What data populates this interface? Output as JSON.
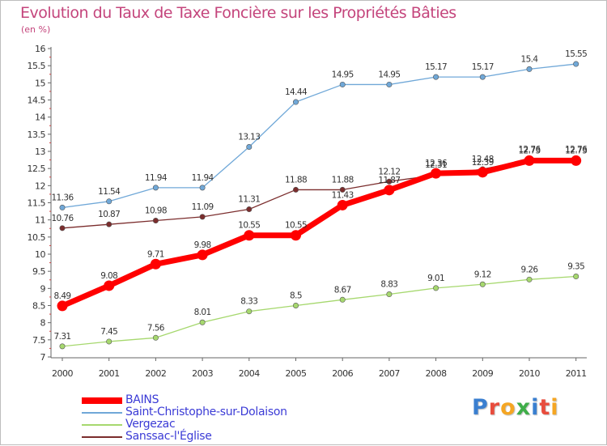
{
  "title": "Evolution du Taux de Taxe Foncière sur les Propriétés Bâties",
  "unit_label": "(en %)",
  "logo_text": "Proxiti",
  "logo_colors": [
    "#3a7fd0",
    "#e84c3d",
    "#f5a623",
    "#3fae49",
    "#3a7fd0",
    "#e84c3d",
    "#f5a623"
  ],
  "chart_data": {
    "type": "line",
    "title": "Evolution du Taux de Taxe Foncière sur les Propriétés Bâties",
    "ylabel": "(en %)",
    "xlabel": "",
    "ylim": [
      7,
      16
    ],
    "yticks": [
      "7",
      "7.5",
      "8",
      "8.5",
      "9",
      "9.5",
      "10",
      "10.5",
      "11",
      "11.5",
      "12",
      "12.5",
      "13",
      "13.5",
      "14",
      "14.5",
      "15",
      "15.5",
      "16"
    ],
    "categories": [
      "2000",
      "2001",
      "2002",
      "2003",
      "2004",
      "2005",
      "2006",
      "2007",
      "2008",
      "2009",
      "2010",
      "2011"
    ],
    "grid": false,
    "legend_position": "bottom-left",
    "series": [
      {
        "name": "BAINS",
        "color": "#ff0000",
        "values": [
          8.49,
          9.08,
          9.71,
          9.98,
          10.55,
          10.55,
          11.43,
          11.87,
          12.36,
          12.39,
          12.73,
          12.73
        ],
        "labels": [
          "8.49",
          "9.08",
          "9.71",
          "9.98",
          "10.55",
          "10.55",
          "11.43",
          "11.87",
          "12.36",
          "12.39",
          "12.73",
          "12.73"
        ]
      },
      {
        "name": "Saint-Christophe-sur-Dolaison",
        "color": "#70a8d8",
        "values": [
          11.36,
          11.54,
          11.94,
          11.94,
          13.13,
          14.44,
          14.95,
          14.95,
          15.17,
          15.17,
          15.4,
          15.55
        ],
        "labels": [
          "11.36",
          "11.54",
          "11.94",
          "11.94",
          "13.13",
          "14.44",
          "14.95",
          "14.95",
          "15.17",
          "15.17",
          "15.4",
          "15.55"
        ]
      },
      {
        "name": "Vergezac",
        "color": "#a6d86e",
        "values": [
          7.31,
          7.45,
          7.56,
          8.01,
          8.33,
          8.5,
          8.67,
          8.83,
          9.01,
          9.12,
          9.26,
          9.35
        ],
        "labels": [
          "7.31",
          "7.45",
          "7.56",
          "8.01",
          "8.33",
          "8.5",
          "8.67",
          "8.83",
          "9.01",
          "9.12",
          "9.26",
          "9.35"
        ]
      },
      {
        "name": "Sanssac-l'Église",
        "color": "#7b2d2d",
        "values": [
          10.76,
          10.87,
          10.98,
          11.09,
          11.31,
          11.88,
          11.88,
          12.12,
          12.31,
          12.48,
          12.76,
          12.76
        ],
        "labels": [
          "10.76",
          "10.87",
          "10.98",
          "11.09",
          "11.31",
          "11.88",
          "11.88",
          "12.12",
          "12.31",
          "12.48",
          "12.76",
          "12.76"
        ]
      }
    ]
  }
}
